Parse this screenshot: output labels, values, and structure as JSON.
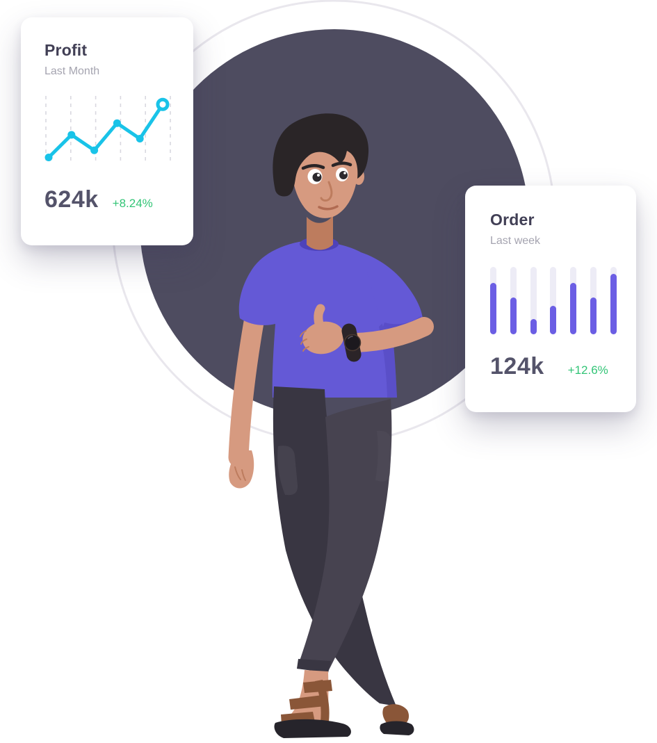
{
  "theme": {
    "circle": "#4e4c60",
    "ring": "#e9e7ed",
    "skin": "#d69a80",
    "skin_shadow": "#bd7c5e",
    "hair": "#2a2527",
    "shirt": "#6459d6",
    "shirt_shadow": "#4e42b9",
    "pants": "#474350",
    "pants_shadow": "#393642",
    "sole": "#26242b",
    "strap": "#8a5638",
    "watch": "#2b2428",
    "card_title": "#413f55",
    "card_subtitle": "#a5a4b0",
    "card_value": "#54536a",
    "positive": "#32c476",
    "line": "#19c3e8",
    "bar": "#6b5ee4",
    "bar_track": "#edecf6",
    "grid": "#d9d8e0"
  },
  "scene": {
    "illustration": "3d-man-thumbs-up",
    "backdrop": "dark-circle-with-ring"
  },
  "profit_card": {
    "title": "Profit",
    "subtitle": "Last Month",
    "value": "624k",
    "change": "+8.24%"
  },
  "order_card": {
    "title": "Order",
    "subtitle": "Last week",
    "value": "124k",
    "change": "+12.6%"
  },
  "chart_data": [
    {
      "type": "line",
      "title": "Profit",
      "subtitle": "Last Month",
      "x": [
        1,
        2,
        3,
        4,
        5,
        6
      ],
      "series": [
        {
          "name": "profit",
          "values": [
            7,
            42,
            18,
            60,
            36,
            89
          ]
        }
      ],
      "ylim": [
        0,
        100
      ],
      "grid": "vertical-dashed",
      "gridline_count": 6,
      "last_point_style": "open-ring",
      "summary_value": "624k",
      "summary_change": "+8.24%"
    },
    {
      "type": "bar",
      "title": "Order",
      "subtitle": "Last week",
      "categories": [
        "1",
        "2",
        "3",
        "4",
        "5",
        "6",
        "7"
      ],
      "values": [
        76,
        55,
        23,
        42,
        76,
        55,
        90
      ],
      "ylim": [
        0,
        100
      ],
      "track": "full-height-rounded",
      "summary_value": "124k",
      "summary_change": "+12.6%"
    }
  ]
}
